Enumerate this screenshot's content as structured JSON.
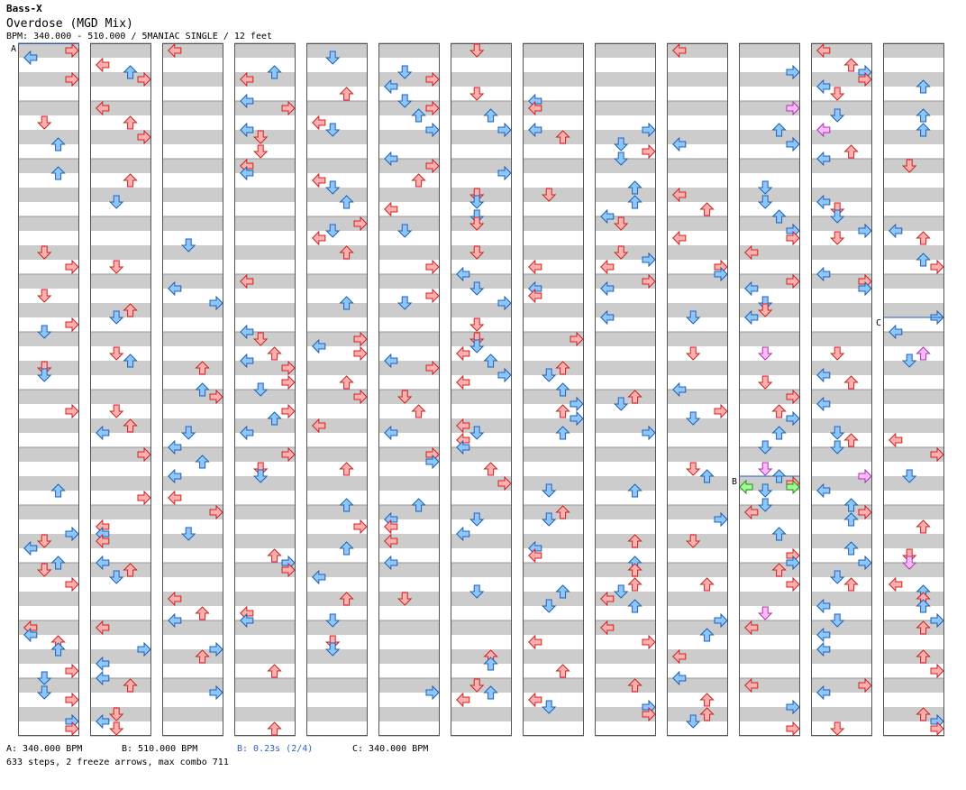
{
  "artist": "Bass-X",
  "song_title": "Overdose (MGD Mix)",
  "meta_line": "BPM: 340.000 - 510.000 / 5MANIAC SINGLE / 12 feet",
  "legend": {
    "a": "A: 340.000 BPM",
    "b": "B: 510.000 BPM",
    "b_stop": "B: 0.23s (2/4)",
    "c": "C: 340.000 BPM"
  },
  "stats": "633 steps, 2 freeze arrows, max combo 711",
  "colors": {
    "red_fill": "#ffb0b0",
    "red_stroke": "#d02020",
    "blue_fill": "#8cc8ff",
    "blue_stroke": "#2060b0",
    "pink_fill": "#ffbbff",
    "pink_stroke": "#b030b0",
    "green_fill": "#a0ff90",
    "green_stroke": "#209020",
    "stripe": "#cccccc",
    "marker": "#3060c0",
    "b_stop_text": "#3060c0"
  },
  "chart_data": {
    "type": "step-chart",
    "mode": "5MANIAC SINGLE",
    "difficulty_feet": 12,
    "columns": 13,
    "bpm_markers": [
      {
        "label": "A",
        "bpm": 340.0
      },
      {
        "label": "B",
        "bpm": 510.0,
        "stop_seconds": 0.23
      },
      {
        "label": "C",
        "bpm": 340.0
      }
    ],
    "total_steps": 633,
    "freeze_arrows": 2,
    "max_combo": 711
  }
}
